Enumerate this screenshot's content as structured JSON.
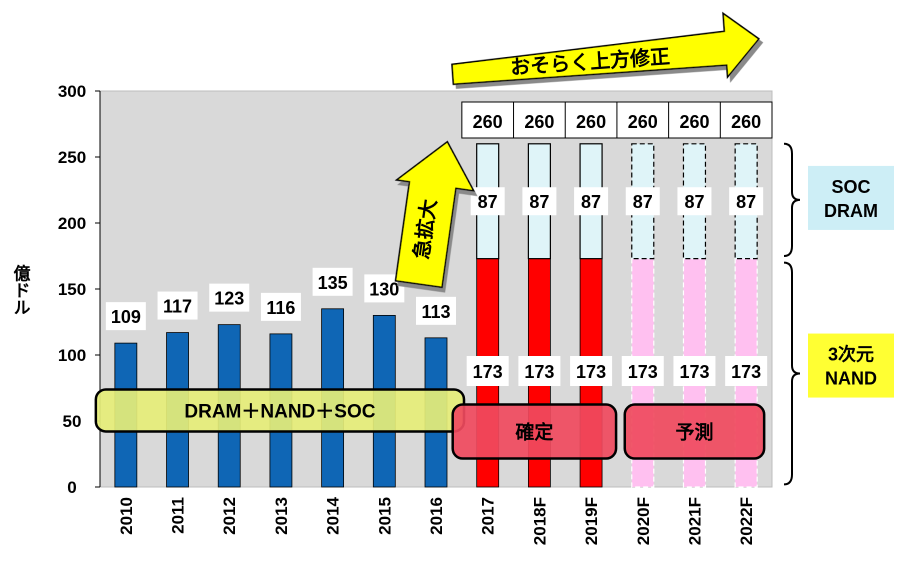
{
  "chart_data": {
    "type": "bar",
    "categories": [
      "2010",
      "2011",
      "2012",
      "2013",
      "2014",
      "2015",
      "2016",
      "2017",
      "2018F",
      "2019F",
      "2020F",
      "2021F",
      "2022F"
    ],
    "ylim": [
      0,
      300
    ],
    "yticks": [
      0,
      50,
      100,
      150,
      200,
      250,
      300
    ],
    "ylabel": "億ドル",
    "grid": false,
    "totals": [
      109,
      117,
      123,
      116,
      135,
      130,
      113,
      260,
      260,
      260,
      260,
      260,
      260
    ],
    "series": [
      {
        "name": "3次元NAND",
        "values": [
          null,
          null,
          null,
          null,
          null,
          null,
          null,
          173,
          173,
          173,
          173,
          173,
          173
        ],
        "color_confirmed": "#ff0000",
        "color_forecast": "#ffc0f0"
      },
      {
        "name": "SOC DRAM",
        "values": [
          null,
          null,
          null,
          null,
          null,
          null,
          null,
          87,
          87,
          87,
          87,
          87,
          87
        ],
        "color": "#dff4f8"
      },
      {
        "name": "DRAM＋NAND＋SOC",
        "values": [
          109,
          117,
          123,
          116,
          135,
          130,
          113,
          null,
          null,
          null,
          null,
          null,
          null
        ],
        "color": "#0f66b5"
      }
    ],
    "annotations": {
      "overlay_past": "DRAM＋NAND＋SOC",
      "confirmed": "確定",
      "forecast": "予測",
      "surge": "急拡大",
      "revision": "おそらく上方修正",
      "legend_top": "SOC\nDRAM",
      "legend_bottom": "3次元\nNAND"
    },
    "colors": {
      "plot_bg": "#d9d9d9",
      "past_bar": "#0f66b5",
      "nand_confirmed": "#ff0000",
      "nand_forecast": "#ffc0f0",
      "soc_dram": "#dff4f8",
      "overlay_yellow": "#e6ee78",
      "overlay_red": "#f04a5e",
      "arrow_yellow": "#ffff00",
      "legend_cyan": "#cdeef6",
      "legend_yellow": "#ffff33"
    }
  }
}
